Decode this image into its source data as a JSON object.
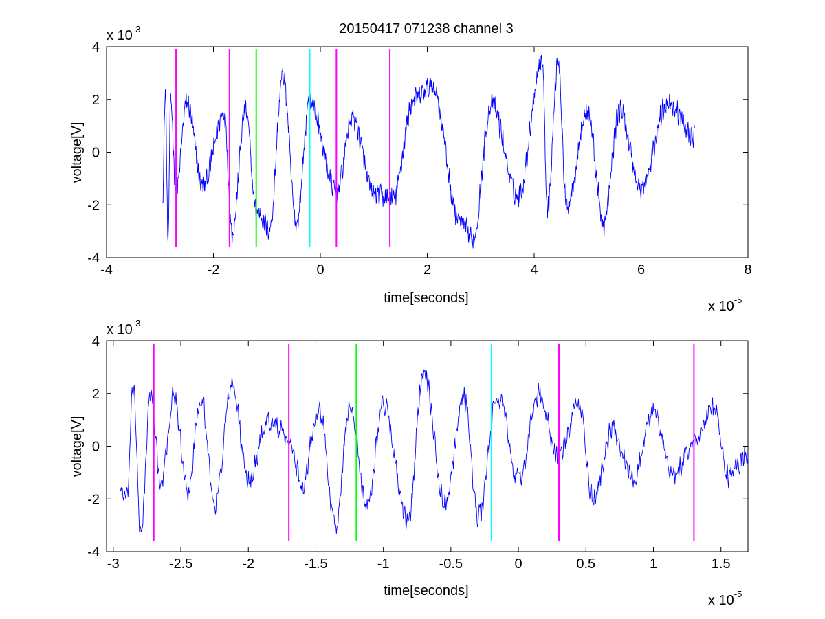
{
  "figure": {
    "title": "20150417 071238 channel 3",
    "trace_color": "#0000ff",
    "background": "#ffffff"
  },
  "chart_data": [
    {
      "type": "line",
      "title": "20150417 071238 channel 3",
      "xlabel": "time[seconds]",
      "ylabel": "voltage[V]",
      "xlim": [
        -4,
        8
      ],
      "ylim": [
        -4,
        4
      ],
      "x_ticks": [
        -4,
        -2,
        0,
        2,
        4,
        6,
        8
      ],
      "y_ticks": [
        -4,
        -2,
        0,
        2,
        4
      ],
      "x_exponent": {
        "base": "x 10",
        "exp": "-5"
      },
      "y_exponent": {
        "base": "x 10",
        "exp": "-3"
      },
      "grid": false,
      "trace": {
        "color": "#0000ff",
        "x_range": [
          -2.95,
          7.0
        ],
        "anchors": [
          [
            -2.95,
            -1.6
          ],
          [
            -2.9,
            2.3
          ],
          [
            -2.85,
            -3.3
          ],
          [
            -2.8,
            2.0
          ],
          [
            -2.7,
            -1.5
          ],
          [
            -2.5,
            1.9
          ],
          [
            -2.2,
            -1.3
          ],
          [
            -1.8,
            1.5
          ],
          [
            -1.65,
            -3.0
          ],
          [
            -1.4,
            1.6
          ],
          [
            -1.2,
            -2.2
          ],
          [
            -0.95,
            -2.9
          ],
          [
            -0.7,
            2.9
          ],
          [
            -0.45,
            -2.7
          ],
          [
            -0.2,
            1.9
          ],
          [
            0.3,
            -1.5
          ],
          [
            0.6,
            1.3
          ],
          [
            1.0,
            -1.6
          ],
          [
            1.35,
            -1.8
          ],
          [
            1.75,
            2.0
          ],
          [
            2.1,
            2.5
          ],
          [
            2.6,
            -2.6
          ],
          [
            2.85,
            -3.3
          ],
          [
            3.2,
            1.8
          ],
          [
            3.7,
            -1.7
          ],
          [
            4.15,
            3.5
          ],
          [
            4.25,
            -2.1
          ],
          [
            4.45,
            3.5
          ],
          [
            4.6,
            -2.0
          ],
          [
            5.0,
            1.5
          ],
          [
            5.3,
            -2.7
          ],
          [
            5.6,
            1.6
          ],
          [
            6.0,
            -1.4
          ],
          [
            6.5,
            1.9
          ],
          [
            7.0,
            0.6
          ]
        ]
      },
      "markers": [
        {
          "x": -2.7,
          "color": "#ff00ff"
        },
        {
          "x": -1.7,
          "color": "#ff00ff"
        },
        {
          "x": -1.2,
          "color": "#00ff00"
        },
        {
          "x": -0.2,
          "color": "#00ffff"
        },
        {
          "x": 0.3,
          "color": "#ff00ff"
        },
        {
          "x": 1.3,
          "color": "#ff00ff"
        }
      ],
      "marker_ylim": [
        -3.6,
        3.9
      ]
    },
    {
      "type": "line",
      "title": "",
      "xlabel": "time[seconds]",
      "ylabel": "voltage[V]",
      "xlim": [
        -3.05,
        1.7
      ],
      "ylim": [
        -4,
        4
      ],
      "x_ticks": [
        -3,
        -2.5,
        -2,
        -1.5,
        -1,
        -0.5,
        0,
        0.5,
        1,
        1.5
      ],
      "y_ticks": [
        -4,
        -2,
        0,
        2,
        4
      ],
      "x_exponent": {
        "base": "x 10",
        "exp": "-5"
      },
      "y_exponent": {
        "base": "x 10",
        "exp": "-3"
      },
      "grid": false,
      "trace": {
        "color": "#0000ff",
        "x_range": [
          -2.95,
          1.7
        ],
        "anchors": [
          [
            -2.95,
            -1.6
          ],
          [
            -2.9,
            -2.0
          ],
          [
            -2.85,
            2.3
          ],
          [
            -2.8,
            -3.3
          ],
          [
            -2.72,
            2.0
          ],
          [
            -2.65,
            -1.5
          ],
          [
            -2.55,
            1.9
          ],
          [
            -2.45,
            -1.8
          ],
          [
            -2.35,
            1.9
          ],
          [
            -2.25,
            -2.2
          ],
          [
            -2.12,
            2.3
          ],
          [
            -2.0,
            -1.3
          ],
          [
            -1.85,
            1.0
          ],
          [
            -1.7,
            0.2
          ],
          [
            -1.6,
            -1.4
          ],
          [
            -1.48,
            1.5
          ],
          [
            -1.35,
            -3.0
          ],
          [
            -1.25,
            1.5
          ],
          [
            -1.12,
            -2.2
          ],
          [
            -1.0,
            1.6
          ],
          [
            -0.82,
            -2.9
          ],
          [
            -0.7,
            2.9
          ],
          [
            -0.55,
            -2.1
          ],
          [
            -0.4,
            1.9
          ],
          [
            -0.3,
            -2.7
          ],
          [
            -0.15,
            1.9
          ],
          [
            0.0,
            -1.3
          ],
          [
            0.15,
            1.9
          ],
          [
            0.3,
            -0.4
          ],
          [
            0.45,
            1.6
          ],
          [
            0.55,
            -2.0
          ],
          [
            0.7,
            0.6
          ],
          [
            0.85,
            -1.2
          ],
          [
            1.0,
            1.3
          ],
          [
            1.15,
            -1.2
          ],
          [
            1.3,
            0.2
          ],
          [
            1.45,
            1.4
          ],
          [
            1.55,
            -1.1
          ],
          [
            1.7,
            -0.3
          ]
        ]
      },
      "markers": [
        {
          "x": -2.7,
          "color": "#ff00ff"
        },
        {
          "x": -1.7,
          "color": "#ff00ff"
        },
        {
          "x": -1.2,
          "color": "#00ff00"
        },
        {
          "x": -0.2,
          "color": "#00ffff"
        },
        {
          "x": 0.3,
          "color": "#ff00ff"
        },
        {
          "x": 1.3,
          "color": "#ff00ff"
        }
      ],
      "marker_ylim": [
        -3.6,
        3.9
      ]
    }
  ]
}
